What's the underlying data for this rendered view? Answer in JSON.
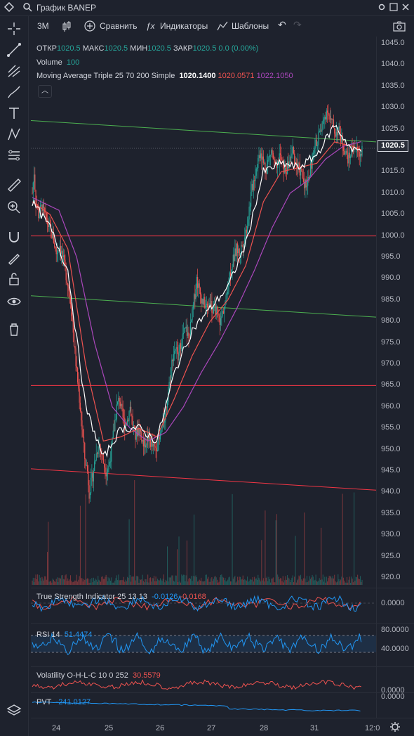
{
  "window": {
    "title": "График BANEP"
  },
  "toolbar": {
    "interval": "3M",
    "compare": "Сравнить",
    "indicators": "Индикаторы",
    "templates": "Шаблоны"
  },
  "legend": {
    "ohlc": {
      "open_label": "ОТКР",
      "open": "1020.5",
      "high_label": "МАКС",
      "high": "1020.5",
      "low_label": "МИН",
      "low": "1020.5",
      "close_label": "ЗАКР",
      "close": "1020.5",
      "change": "0.0 (0.00%)"
    },
    "volume": {
      "label": "Volume",
      "value": "100"
    },
    "ma": {
      "label": "Moving Average Triple 25 70 200 Simple",
      "v1": "1020.1400",
      "v2": "1020.0571",
      "v3": "1022.1050"
    },
    "tsi": {
      "label": "True Strength Indicator 25 13 13",
      "v1": "-0.0126",
      "v2": "-0.0168"
    },
    "rsi": {
      "label": "RSI 14",
      "value": "51.4474"
    },
    "vol": {
      "label": "Volatility O-H-L-C 10 0 252",
      "value": "30.5579"
    },
    "pvt": {
      "label": "PVT",
      "value": "-241.0127"
    }
  },
  "price_badge": "1020.5",
  "colors": {
    "up": "#26a69a",
    "down": "#ef5350",
    "ma_fast": "#ffffff",
    "ma_mid": "#ef5350",
    "ma_slow": "#ab47bc",
    "trend_green": "#4caf50",
    "trend_red": "#f23645",
    "indicator": "#2196f3",
    "background": "#1e222d"
  },
  "chart_data": {
    "type": "candlestick",
    "symbol": "BANEP",
    "x_ticks": [
      "24",
      "25",
      "26",
      "27",
      "28",
      "31",
      "12:0"
    ],
    "y_ticks": [
      "1045.0",
      "1040.0",
      "1035.0",
      "1030.0",
      "1025.0",
      "1020.0",
      "1015.0",
      "1010.0",
      "1005.0",
      "1000.0",
      "995.0",
      "990.0",
      "985.0",
      "980.0",
      "975.0",
      "970.0",
      "965.0",
      "960.0",
      "955.0",
      "950.0",
      "945.0",
      "940.0",
      "935.0",
      "930.0",
      "925.0",
      "920.0"
    ],
    "ylim": [
      919,
      1046
    ],
    "close_path": [
      [
        0,
        1010
      ],
      [
        2,
        1015
      ],
      [
        4,
        1008
      ],
      [
        7,
        1005
      ],
      [
        11,
        1007
      ],
      [
        15,
        1004
      ],
      [
        19,
        1002
      ],
      [
        23,
        1000
      ],
      [
        27,
        996
      ],
      [
        31,
        998
      ],
      [
        35,
        994
      ],
      [
        39,
        990
      ],
      [
        43,
        985
      ],
      [
        47,
        975
      ],
      [
        50,
        968
      ],
      [
        53,
        962
      ],
      [
        56,
        955
      ],
      [
        59,
        948
      ],
      [
        62,
        945
      ],
      [
        64,
        940
      ],
      [
        66,
        942
      ],
      [
        68,
        944
      ],
      [
        71,
        948
      ],
      [
        74,
        951
      ],
      [
        77,
        950
      ],
      [
        80,
        947
      ],
      [
        83,
        945
      ],
      [
        86,
        946
      ],
      [
        89,
        950
      ],
      [
        92,
        955
      ],
      [
        95,
        960
      ],
      [
        98,
        962
      ],
      [
        101,
        958
      ],
      [
        104,
        956
      ],
      [
        107,
        957
      ],
      [
        110,
        960
      ],
      [
        113,
        956
      ],
      [
        116,
        953
      ],
      [
        119,
        955
      ],
      [
        122,
        954
      ],
      [
        125,
        951
      ],
      [
        128,
        952
      ],
      [
        131,
        953
      ],
      [
        134,
        951
      ],
      [
        137,
        950
      ],
      [
        140,
        951
      ],
      [
        143,
        952
      ],
      [
        146,
        955
      ],
      [
        149,
        958
      ],
      [
        152,
        962
      ],
      [
        155,
        967
      ],
      [
        158,
        972
      ],
      [
        161,
        974
      ],
      [
        164,
        971
      ],
      [
        167,
        975
      ],
      [
        170,
        977
      ],
      [
        173,
        978
      ],
      [
        176,
        976
      ],
      [
        179,
        980
      ],
      [
        182,
        985
      ],
      [
        185,
        990
      ],
      [
        188,
        987
      ],
      [
        191,
        985
      ],
      [
        194,
        984
      ],
      [
        197,
        983
      ],
      [
        200,
        985
      ],
      [
        203,
        982
      ],
      [
        206,
        983
      ],
      [
        209,
        981
      ],
      [
        212,
        980
      ],
      [
        215,
        983
      ],
      [
        218,
        985
      ],
      [
        221,
        990
      ],
      [
        224,
        993
      ],
      [
        227,
        995
      ],
      [
        230,
        997
      ],
      [
        233,
        996
      ],
      [
        236,
        998
      ],
      [
        239,
        1000
      ],
      [
        242,
        1003
      ],
      [
        245,
        1008
      ],
      [
        248,
        1012
      ],
      [
        251,
        1015
      ],
      [
        254,
        1018
      ],
      [
        257,
        1020
      ],
      [
        260,
        1017
      ],
      [
        263,
        1016
      ],
      [
        266,
        1018
      ],
      [
        269,
        1020
      ],
      [
        272,
        1017
      ],
      [
        275,
        1015
      ],
      [
        278,
        1019
      ],
      [
        281,
        1017
      ],
      [
        284,
        1015
      ],
      [
        287,
        1016
      ],
      [
        290,
        1018
      ],
      [
        293,
        1020
      ],
      [
        296,
        1017
      ],
      [
        299,
        1016
      ],
      [
        302,
        1015
      ],
      [
        305,
        1013
      ],
      [
        308,
        1012
      ],
      [
        311,
        1014
      ],
      [
        314,
        1017
      ],
      [
        317,
        1020
      ],
      [
        320,
        1022
      ],
      [
        323,
        1024
      ],
      [
        326,
        1025
      ],
      [
        329,
        1028
      ],
      [
        332,
        1030
      ],
      [
        335,
        1027
      ],
      [
        338,
        1026
      ],
      [
        341,
        1024
      ],
      [
        344,
        1025
      ],
      [
        347,
        1023
      ],
      [
        350,
        1021
      ],
      [
        353,
        1019
      ],
      [
        356,
        1018
      ],
      [
        359,
        1020
      ],
      [
        362,
        1021
      ],
      [
        365,
        1020
      ],
      [
        368,
        1019
      ],
      [
        371,
        1020.5
      ]
    ],
    "ma_fast_path": [
      [
        0,
        1008
      ],
      [
        20,
        1002
      ],
      [
        40,
        992
      ],
      [
        60,
        960
      ],
      [
        80,
        948
      ],
      [
        100,
        955
      ],
      [
        120,
        955
      ],
      [
        140,
        952
      ],
      [
        160,
        968
      ],
      [
        180,
        978
      ],
      [
        200,
        983
      ],
      [
        220,
        988
      ],
      [
        240,
        998
      ],
      [
        260,
        1015
      ],
      [
        280,
        1017
      ],
      [
        300,
        1016
      ],
      [
        320,
        1019
      ],
      [
        340,
        1026
      ],
      [
        360,
        1020
      ],
      [
        371,
        1020.1
      ]
    ],
    "ma_mid_path": [
      [
        0,
        1008
      ],
      [
        20,
        1005
      ],
      [
        40,
        997
      ],
      [
        60,
        970
      ],
      [
        80,
        952
      ],
      [
        100,
        953
      ],
      [
        120,
        955
      ],
      [
        140,
        953
      ],
      [
        160,
        962
      ],
      [
        180,
        972
      ],
      [
        200,
        980
      ],
      [
        220,
        985
      ],
      [
        240,
        993
      ],
      [
        260,
        1008
      ],
      [
        280,
        1015
      ],
      [
        300,
        1016
      ],
      [
        320,
        1017
      ],
      [
        340,
        1022
      ],
      [
        360,
        1021
      ],
      [
        371,
        1020.1
      ]
    ],
    "ma_slow_path": [
      [
        0,
        1009
      ],
      [
        30,
        1006
      ],
      [
        50,
        995
      ],
      [
        70,
        975
      ],
      [
        90,
        960
      ],
      [
        110,
        955
      ],
      [
        130,
        952
      ],
      [
        150,
        954
      ],
      [
        170,
        960
      ],
      [
        190,
        968
      ],
      [
        210,
        975
      ],
      [
        230,
        983
      ],
      [
        250,
        992
      ],
      [
        270,
        1002
      ],
      [
        290,
        1010
      ],
      [
        310,
        1013
      ],
      [
        330,
        1018
      ],
      [
        350,
        1021
      ],
      [
        371,
        1022.1
      ]
    ],
    "trend_lines": [
      {
        "color": "green",
        "from": [
          0,
          1027
        ],
        "to": [
          371,
          1022
        ]
      },
      {
        "color": "green",
        "from": [
          0,
          986
        ],
        "to": [
          371,
          981
        ]
      },
      {
        "color": "red",
        "from": [
          0,
          1000
        ],
        "to": [
          371,
          1000
        ]
      },
      {
        "color": "red",
        "from": [
          0,
          965
        ],
        "to": [
          371,
          965
        ]
      },
      {
        "color": "red",
        "from": [
          0,
          945.5
        ],
        "to": [
          371,
          940.5
        ]
      }
    ],
    "indicators": [
      {
        "name": "True Strength Indicator 25 13 13",
        "y_ticks": [
          "0.0000"
        ],
        "values": [
          "-0.0126",
          "-0.0168"
        ]
      },
      {
        "name": "RSI 14",
        "y_ticks": [
          "80.0000",
          "40.0000"
        ],
        "values": [
          "51.4474"
        ]
      },
      {
        "name": "Volatility O-H-L-C 10 0 252",
        "values": [
          "30.5579"
        ]
      },
      {
        "name": "PVT",
        "y_ticks": [
          "0.0000"
        ],
        "values": [
          "-241.0127"
        ]
      }
    ]
  }
}
